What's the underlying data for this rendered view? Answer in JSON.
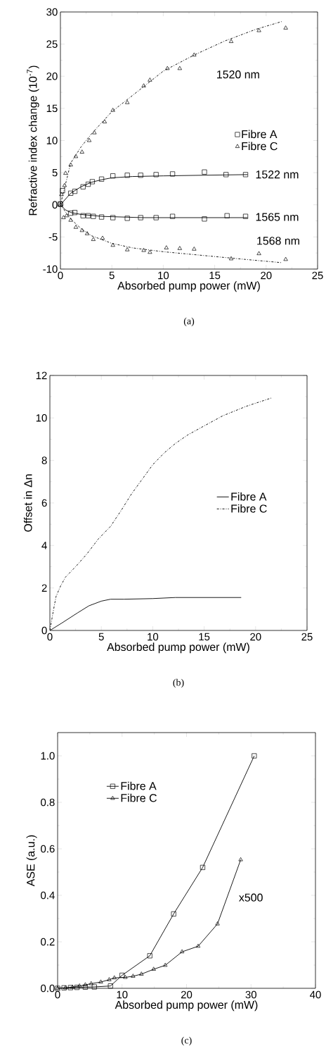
{
  "chart_data": [
    {
      "type": "scatter",
      "xlabel": "Absorbed pump power (mW)",
      "ylabel": "Refractive index change (10$^{-7}$)",
      "xlim": [
        0,
        25
      ],
      "xticks": [
        0,
        5,
        10,
        15,
        20,
        25
      ],
      "ylim": [
        -10,
        30
      ],
      "yticks": [
        -10,
        -5,
        0,
        5,
        10,
        15,
        20,
        25,
        30
      ],
      "legend": "right",
      "series": [
        {
          "name": "Fibre A",
          "color": "#000000",
          "marker": "square",
          "x": [
            0,
            0.2,
            1.0,
            1.4,
            2.2,
            2.7,
            3.1,
            4.0,
            5.1,
            6.5,
            7.8,
            9.3,
            10.9,
            14.0,
            16.1,
            18.0
          ],
          "values": [
            0.1,
            2.2,
            1.8,
            2.1,
            2.8,
            3.2,
            3.6,
            4.0,
            4.5,
            4.6,
            4.6,
            4.7,
            4.8,
            5.1,
            4.7,
            4.7
          ]
        },
        {
          "color": "#000000",
          "marker": "square",
          "x": [
            0,
            1.0,
            1.4,
            2.2,
            2.7,
            3.2,
            4.0,
            5.1,
            6.5,
            7.8,
            9.3,
            10.9,
            14.0,
            16.2,
            18.0
          ],
          "values": [
            0.1,
            -1.3,
            -1.2,
            -1.7,
            -1.7,
            -1.8,
            -1.9,
            -2.0,
            -2.1,
            -2.0,
            -2.0,
            -1.8,
            -2.2,
            -1.7,
            -1.8
          ]
        },
        {
          "name": "Fibre C",
          "color": "#000000",
          "marker": "triangle",
          "x": [
            0,
            0.1,
            0.4,
            0.5,
            1.0,
            1.5,
            2.1,
            2.8,
            3.3,
            4.3,
            5.1,
            6.5,
            8.1,
            8.7,
            10.4,
            11.6,
            13.0,
            16.6,
            19.3,
            21.9
          ],
          "values": [
            0,
            1.6,
            3.0,
            4.9,
            6.2,
            7.5,
            8.2,
            10.0,
            11.2,
            12.9,
            14.7,
            15.9,
            18.5,
            19.4,
            21.2,
            21.2,
            23.3,
            25.4,
            27.1,
            27.5
          ]
        },
        {
          "color": "#000000",
          "marker": "triangle",
          "x": [
            0.3,
            0.6,
            1.0,
            1.5,
            2.1,
            2.6,
            3.2,
            4.1,
            5.1,
            6.5,
            8.1,
            8.7,
            10.3,
            11.6,
            13.0,
            16.6,
            19.3,
            21.9
          ],
          "values": [
            -2.0,
            -1.7,
            -2.4,
            -3.5,
            -4.0,
            -4.5,
            -5.4,
            -5.2,
            -6.3,
            -7.0,
            -7.1,
            -7.4,
            -6.7,
            -6.8,
            -6.9,
            -8.4,
            -7.6,
            -8.5
          ]
        },
        {
          "type": "line",
          "color": "#000000",
          "line_style": "solid",
          "x": [
            0,
            1,
            2,
            3,
            4,
            5,
            7,
            10,
            14,
            18.2
          ],
          "values": [
            0,
            1.8,
            2.8,
            3.5,
            3.9,
            4.2,
            4.4,
            4.5,
            4.6,
            4.7
          ]
        },
        {
          "type": "line",
          "color": "#000000",
          "line_style": "solid",
          "x": [
            0,
            0.5,
            1,
            2,
            4,
            8,
            14,
            18.2
          ],
          "values": [
            0,
            -0.8,
            -1.2,
            -1.5,
            -1.8,
            -2.0,
            -2.0,
            -2.0
          ]
        },
        {
          "type": "line",
          "color": "#000000",
          "line_style": "dashdot",
          "x": [
            0,
            1,
            2,
            3,
            5,
            7,
            10,
            13,
            16,
            19,
            21.5
          ],
          "values": [
            0,
            6.5,
            9,
            11,
            14.5,
            17,
            20.8,
            23.3,
            25.5,
            27.3,
            28.5
          ]
        },
        {
          "type": "line",
          "color": "#000000",
          "line_style": "dashdot",
          "x": [
            0,
            1,
            2,
            3,
            5,
            7,
            10,
            14,
            18,
            21.5
          ],
          "values": [
            0,
            -2.2,
            -3.7,
            -4.8,
            -6.0,
            -6.7,
            -7.3,
            -7.9,
            -8.5,
            -9.0
          ]
        }
      ],
      "annotations": [
        "1520 nm",
        "1522 nm",
        "1565 nm",
        "1568 nm",
        "(a)"
      ]
    },
    {
      "type": "line",
      "xlabel": "Absorbed pump power (mW)",
      "ylabel": "Offset in Δn",
      "xlim": [
        0,
        25
      ],
      "xticks": [
        0,
        5,
        10,
        15,
        20,
        25
      ],
      "ylim": [
        0,
        12
      ],
      "yticks": [
        0,
        2,
        4,
        6,
        8,
        10,
        12
      ],
      "legend": "right",
      "series": [
        {
          "name": "Fibre A",
          "color": "#000000",
          "line_style": "solid",
          "x": [
            0,
            1.1,
            2.7,
            3.8,
            5.0,
            5.9,
            7.2,
            10,
            12.2,
            15.7,
            18.6
          ],
          "values": [
            0,
            0.33,
            0.83,
            1.16,
            1.38,
            1.47,
            1.47,
            1.5,
            1.55,
            1.55,
            1.55
          ]
        },
        {
          "name": "Fibre C",
          "color": "#000000",
          "line_style": "dashdot",
          "x": [
            0,
            0.3,
            0.6,
            1.0,
            1.5,
            2.5,
            3.6,
            4.7,
            5.9,
            7.0,
            7.9,
            8.8,
            10.0,
            11.1,
            12.2,
            13.4,
            14.9,
            16.8,
            19.1,
            21.6
          ],
          "values": [
            0,
            0.83,
            1.6,
            2.05,
            2.5,
            3.0,
            3.6,
            4.3,
            4.9,
            5.7,
            6.4,
            7.0,
            7.8,
            8.35,
            8.8,
            9.2,
            9.6,
            10.1,
            10.55,
            10.95
          ]
        }
      ],
      "annotations": [
        "(b)"
      ]
    },
    {
      "type": "line",
      "xlabel": "Absorbed pump power (mW)",
      "ylabel": "ASE (a.u.)",
      "xlim": [
        0,
        40
      ],
      "xticks": [
        0,
        10,
        20,
        30,
        40
      ],
      "ylim": [
        0,
        1.1
      ],
      "yticks": [
        {
          "value": 0,
          "label": "0.0"
        },
        {
          "value": 0.2,
          "label": "0.2"
        },
        {
          "value": 0.4,
          "label": "0.4"
        },
        {
          "value": 0.6,
          "label": "0.6"
        },
        {
          "value": 0.8,
          "label": "0.8"
        },
        {
          "value": 1.0,
          "label": "1.0"
        }
      ],
      "legend": "top left",
      "series": [
        {
          "name": "Fibre A",
          "color": "#000000",
          "marker": "square",
          "line_style": "solid",
          "x": [
            0,
            1,
            2,
            3,
            4.3,
            5.7,
            8.2,
            10,
            14.3,
            18,
            22.5,
            30.5
          ],
          "values": [
            0,
            0.002,
            0.003,
            0.004,
            0.005,
            0.006,
            0.01,
            0.056,
            0.14,
            0.32,
            0.52,
            1.0
          ]
        },
        {
          "name": "Fibre C",
          "color": "#000000",
          "marker": "triangle",
          "line_style": "solid",
          "x": [
            0,
            1.2,
            2.3,
            3.4,
            4.3,
            5.2,
            6.7,
            8.0,
            8.8,
            10.5,
            11.7,
            13.0,
            14.9,
            16.7,
            19.3,
            21.8,
            24.8,
            28.4
          ],
          "values": [
            0,
            0.002,
            0.005,
            0.01,
            0.015,
            0.02,
            0.027,
            0.037,
            0.045,
            0.047,
            0.052,
            0.061,
            0.082,
            0.099,
            0.157,
            0.181,
            0.277,
            0.553
          ]
        }
      ],
      "annotations": [
        "x500",
        "(c)"
      ]
    }
  ]
}
